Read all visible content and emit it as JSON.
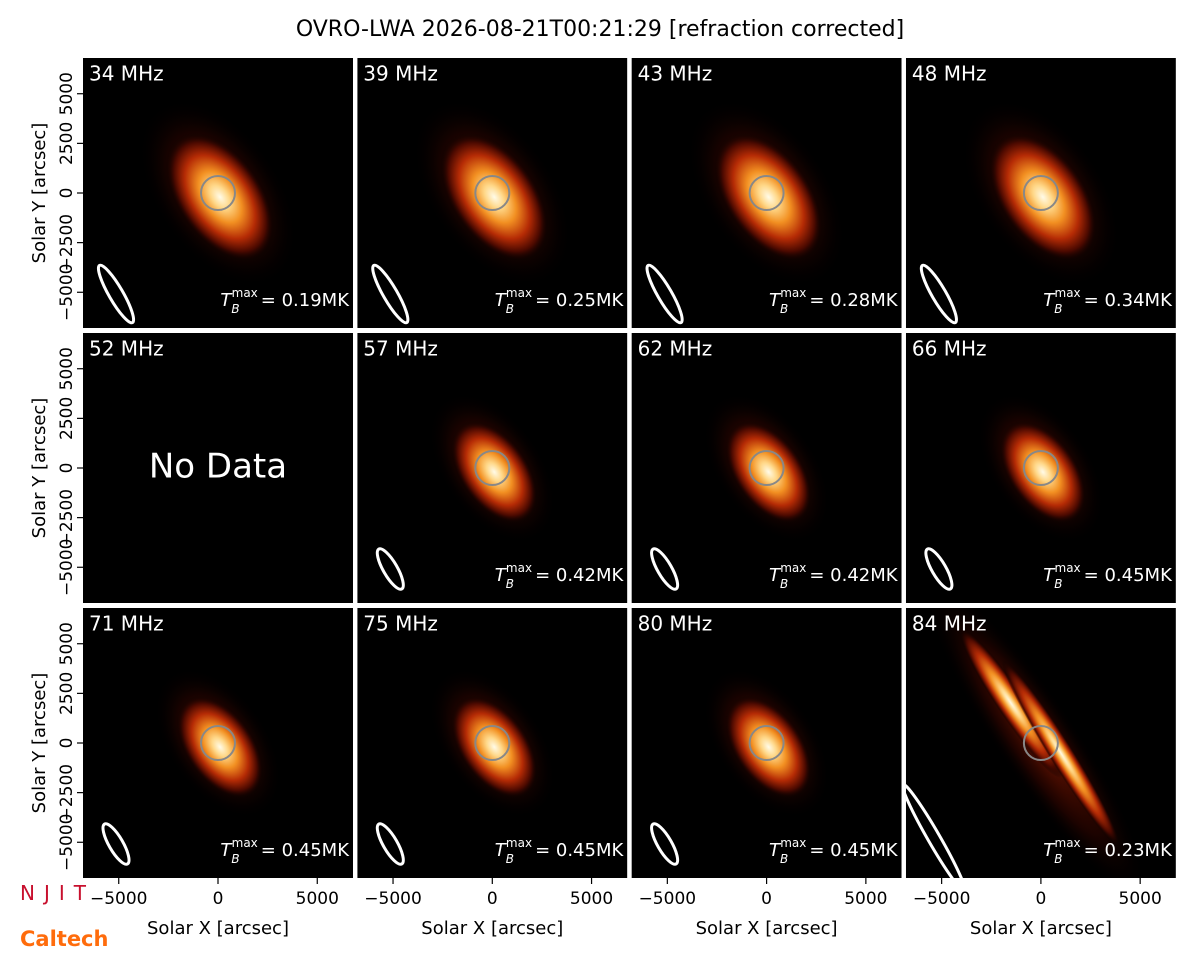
{
  "title": "OVRO-LWA 2026-08-21T00:21:29 [refraction corrected]",
  "tb": {
    "base": "T",
    "sub": "B",
    "sup": "max"
  },
  "logos": [
    "NJIT",
    "Caltech"
  ],
  "chart_data": [
    {
      "type": "image",
      "title": "34 MHz",
      "annotation": "= 0.19MK",
      "xlim": [
        -6800,
        6800
      ],
      "ylim": [
        -6800,
        6800
      ],
      "ylabel": "Solar Y [arcsec]",
      "yticks": [
        {
          "value": -5000,
          "label": "−5000"
        },
        {
          "value": -2500,
          "label": "−2500"
        },
        0,
        2500,
        5000
      ]
    },
    {
      "type": "image",
      "title": "39 MHz",
      "annotation": "= 0.25MK",
      "xlim": [
        -6800,
        6800
      ],
      "ylim": [
        -6800,
        6800
      ]
    },
    {
      "type": "image",
      "title": "43 MHz",
      "annotation": "= 0.28MK",
      "xlim": [
        -6800,
        6800
      ],
      "ylim": [
        -6800,
        6800
      ]
    },
    {
      "type": "image",
      "title": "48 MHz",
      "annotation": "= 0.34MK",
      "xlim": [
        -6800,
        6800
      ],
      "ylim": [
        -6800,
        6800
      ]
    },
    {
      "type": "image",
      "title": "52 MHz",
      "message": "No Data",
      "xlim": [
        -6800,
        6800
      ],
      "ylim": [
        -6800,
        6800
      ],
      "ylabel": "Solar Y [arcsec]",
      "yticks": [
        {
          "value": -5000,
          "label": "−5000"
        },
        {
          "value": -2500,
          "label": "−2500"
        },
        0,
        2500,
        5000
      ]
    },
    {
      "type": "image",
      "title": "57 MHz",
      "annotation": "= 0.42MK",
      "xlim": [
        -6800,
        6800
      ],
      "ylim": [
        -6800,
        6800
      ]
    },
    {
      "type": "image",
      "title": "62 MHz",
      "annotation": "= 0.42MK",
      "xlim": [
        -6800,
        6800
      ],
      "ylim": [
        -6800,
        6800
      ]
    },
    {
      "type": "image",
      "title": "66 MHz",
      "annotation": "= 0.45MK",
      "xlim": [
        -6800,
        6800
      ],
      "ylim": [
        -6800,
        6800
      ]
    },
    {
      "type": "image",
      "title": "71 MHz",
      "annotation": "= 0.45MK",
      "xlim": [
        -6800,
        6800
      ],
      "ylim": [
        -6800,
        6800
      ],
      "ylabel": "Solar Y [arcsec]",
      "xlabel": "Solar X [arcsec]",
      "yticks": [
        {
          "value": -5000,
          "label": "−5000"
        },
        {
          "value": -2500,
          "label": "−2500"
        },
        0,
        2500,
        5000
      ],
      "xticks": [
        {
          "value": -5000,
          "label": "−5000"
        },
        0,
        5000
      ]
    },
    {
      "type": "image",
      "title": "75 MHz",
      "annotation": "= 0.45MK",
      "xlim": [
        -6800,
        6800
      ],
      "ylim": [
        -6800,
        6800
      ],
      "xlabel": "Solar X [arcsec]",
      "xticks": [
        {
          "value": -5000,
          "label": "−5000"
        },
        0,
        5000
      ]
    },
    {
      "type": "image",
      "title": "80 MHz",
      "annotation": "= 0.45MK",
      "xlim": [
        -6800,
        6800
      ],
      "ylim": [
        -6800,
        6800
      ],
      "xlabel": "Solar X [arcsec]",
      "xticks": [
        {
          "value": -5000,
          "label": "−5000"
        },
        0,
        5000
      ]
    },
    {
      "type": "image",
      "title": "84 MHz",
      "annotation": "= 0.23MK",
      "xlim": [
        -6800,
        6800
      ],
      "ylim": [
        -6800,
        6800
      ],
      "xlabel": "Solar X [arcsec]",
      "xticks": [
        {
          "value": -5000,
          "label": "−5000"
        },
        0,
        5000
      ]
    }
  ]
}
